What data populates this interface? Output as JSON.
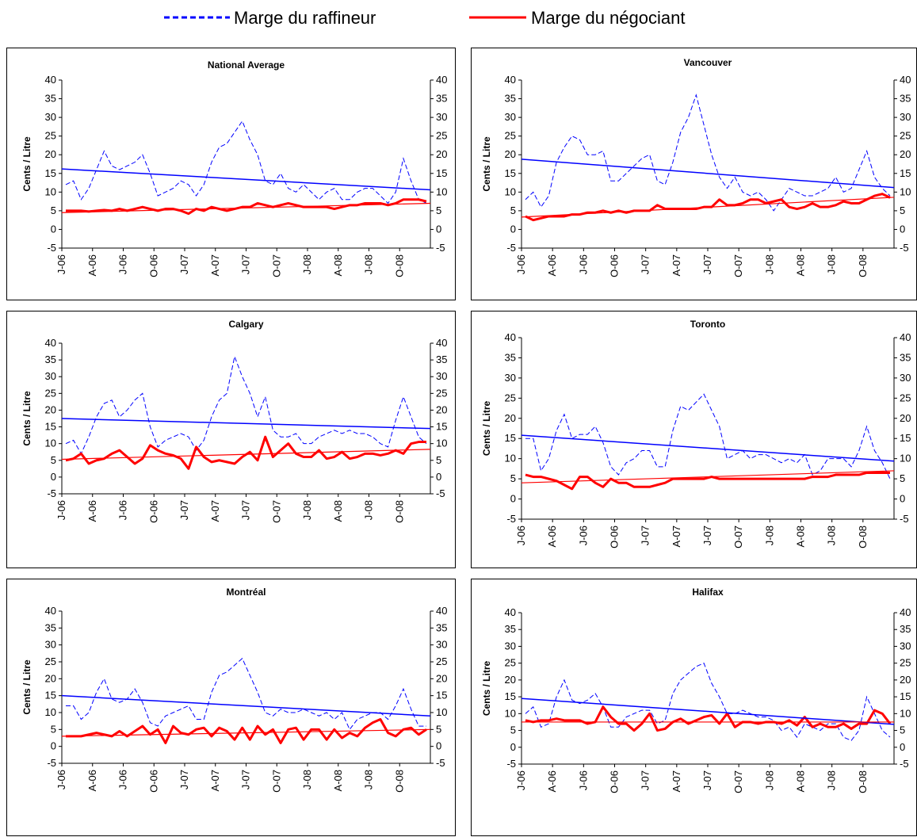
{
  "legend": {
    "refiner": {
      "label": "Marge du raffineur",
      "color": "#0000ff",
      "style": "dashed"
    },
    "retailer": {
      "label": "Marge du négociant",
      "color": "#ff0000",
      "style": "solid"
    }
  },
  "colors": {
    "refiner": "#0000ff",
    "retailer": "#ff0000"
  },
  "chart_data": [
    {
      "type": "line",
      "title": "National Average",
      "ylabel": "Cents / Litre",
      "ylim": [
        -5,
        40
      ],
      "yticks": [
        -5,
        0,
        5,
        10,
        15,
        20,
        25,
        30,
        35,
        40
      ],
      "xticks": [
        "J-06",
        "A-06",
        "J-06",
        "O-06",
        "J-07",
        "A-07",
        "J-07",
        "O-07",
        "J-08",
        "A-08",
        "J-08",
        "O-08"
      ],
      "series": [
        {
          "name": "Marge du raffineur",
          "x": [
            0,
            0.25,
            0.5,
            0.75,
            1,
            1.25,
            1.5,
            1.75,
            2,
            2.25,
            2.5,
            2.75,
            3,
            3.25,
            3.5,
            3.75,
            4,
            4.25,
            4.5,
            4.75,
            5,
            5.25,
            5.5,
            5.75,
            6,
            6.25,
            6.5,
            6.75,
            7,
            7.25,
            7.5,
            7.75,
            8,
            8.25,
            8.5,
            8.75,
            9,
            9.25,
            9.5,
            9.75,
            10,
            10.25,
            10.5,
            10.75,
            11,
            11.25,
            11.5,
            11.75
          ],
          "values": [
            12,
            13,
            8,
            11,
            16,
            21,
            17,
            16,
            17,
            18,
            20,
            15,
            9,
            10,
            11,
            13,
            12,
            9,
            12,
            18,
            22,
            23,
            26,
            29,
            24,
            20,
            13,
            12,
            15,
            11,
            10,
            12,
            10,
            8,
            10,
            11,
            8,
            8,
            10,
            11,
            11,
            9,
            7,
            10,
            19,
            13,
            8,
            7
          ]
        },
        {
          "name": "Marge du négociant",
          "values": [
            5,
            5,
            5,
            4.8,
            5,
            5.2,
            5,
            5.5,
            5,
            5.5,
            6,
            5.5,
            5,
            5.5,
            5.5,
            5,
            4.2,
            5.5,
            5,
            6,
            5.5,
            5,
            5.5,
            6,
            6,
            7,
            6.5,
            6,
            6.5,
            7,
            6.5,
            6,
            6,
            6,
            6,
            5.5,
            6,
            6.5,
            6.5,
            7,
            7,
            7,
            6.5,
            7,
            8,
            8,
            8,
            7.5
          ]
        },
        {
          "name": "Marge du raffineur (tendance)",
          "values": [
            16.2,
            10.6
          ]
        },
        {
          "name": "Marge du négociant (tendance)",
          "values": [
            4.5,
            7.0
          ]
        }
      ]
    },
    {
      "type": "line",
      "title": "Vancouver",
      "ylabel": "Cents / Litre",
      "ylim": [
        -5,
        40
      ],
      "yticks": [
        -5,
        0,
        5,
        10,
        15,
        20,
        25,
        30,
        35,
        40
      ],
      "xticks": [
        "J-06",
        "A-06",
        "J-06",
        "O-06",
        "J-07",
        "A-07",
        "J-07",
        "O-07",
        "J-08",
        "A-08",
        "J-08",
        "O-08"
      ],
      "series": [
        {
          "name": "Marge du raffineur",
          "values": [
            8,
            10,
            6,
            9,
            18,
            22,
            25,
            24,
            20,
            20,
            21,
            13,
            13,
            15,
            17,
            19,
            20,
            13,
            12,
            18,
            26,
            30,
            36,
            28,
            20,
            14,
            11,
            14,
            10,
            9,
            10,
            8,
            5,
            8,
            11,
            10,
            9,
            9,
            10,
            11,
            14,
            10,
            11,
            16,
            21,
            14,
            11,
            9
          ]
        },
        {
          "name": "Marge du négociant",
          "values": [
            3.5,
            2.5,
            3,
            3.5,
            3.5,
            3.5,
            4,
            4,
            4.5,
            4.5,
            5,
            4.5,
            5,
            4.5,
            5,
            5,
            5,
            6.5,
            5.5,
            5.5,
            5.5,
            5.5,
            5.5,
            6,
            6,
            8,
            6.5,
            6.5,
            7,
            8,
            8,
            7,
            7.5,
            8,
            6,
            5.5,
            6,
            7,
            6,
            6,
            6.5,
            7.5,
            7,
            7,
            8,
            9,
            9.5,
            8.5
          ]
        },
        {
          "name": "Marge du raffineur (tendance)",
          "values": [
            18.8,
            11.2
          ]
        },
        {
          "name": "Marge du négociant (tendance)",
          "values": [
            3.3,
            8.6
          ]
        }
      ]
    },
    {
      "type": "line",
      "title": "Calgary",
      "ylabel": "Cents / Litre",
      "ylim": [
        -5,
        40
      ],
      "yticks": [
        -5,
        0,
        5,
        10,
        15,
        20,
        25,
        30,
        35,
        40
      ],
      "xticks": [
        "J-06",
        "A-06",
        "J-06",
        "O-06",
        "J-07",
        "A-07",
        "J-07",
        "O-07",
        "J-08",
        "A-08",
        "J-08",
        "O-08"
      ],
      "series": [
        {
          "name": "Marge du raffineur",
          "values": [
            10,
            11,
            7,
            12,
            18,
            22,
            23,
            18,
            20,
            23,
            25,
            15,
            9,
            11,
            12,
            13,
            12,
            8,
            11,
            18,
            23,
            25,
            36,
            30,
            25,
            18,
            24,
            14,
            12,
            12,
            13,
            10,
            10,
            12,
            13,
            14,
            13,
            14,
            13,
            13,
            12,
            10,
            9,
            17,
            24,
            18,
            12,
            10
          ]
        },
        {
          "name": "Marge du négociant",
          "values": [
            5,
            5.5,
            7,
            4,
            5,
            5.5,
            7,
            8,
            6,
            4,
            5.5,
            9.5,
            8,
            7,
            6.5,
            5.5,
            2.5,
            9,
            6,
            4.5,
            5,
            4.5,
            4,
            6,
            7.5,
            5,
            12,
            6,
            8,
            10,
            7,
            6,
            6,
            8,
            5.5,
            6,
            7.5,
            5.5,
            6,
            7,
            7,
            6.5,
            7,
            8,
            7,
            10,
            10.5,
            10.5
          ]
        },
        {
          "name": "Marge du raffineur (tendance)",
          "values": [
            17.5,
            14.5
          ]
        },
        {
          "name": "Marge du négociant (tendance)",
          "values": [
            5.3,
            8.3
          ]
        }
      ]
    },
    {
      "type": "line",
      "title": "Toronto",
      "ylabel": "Cents / Litre",
      "ylim": [
        -5,
        40
      ],
      "yticks": [
        -5,
        0,
        5,
        10,
        15,
        20,
        25,
        30,
        35,
        40
      ],
      "xticks": [
        "J-06",
        "A-06",
        "J-06",
        "O-06",
        "J-07",
        "A-07",
        "J-07",
        "O-07",
        "J-08",
        "A-08",
        "J-08",
        "O-08"
      ],
      "series": [
        {
          "name": "Marge du raffineur",
          "values": [
            15,
            15,
            7,
            10,
            17,
            21,
            15,
            16,
            16,
            18,
            14,
            8,
            6,
            9,
            10,
            12,
            12,
            8,
            8,
            17,
            23,
            22,
            24,
            26,
            22,
            18,
            10,
            11,
            12,
            10,
            11,
            11,
            10,
            9,
            10,
            9,
            11,
            6,
            7,
            10,
            10,
            10,
            8,
            12,
            18,
            12,
            9,
            5
          ]
        },
        {
          "name": "Marge du négociant",
          "values": [
            6,
            5.5,
            5.5,
            5,
            4.5,
            3.5,
            2.5,
            5.5,
            5.5,
            4,
            3,
            5,
            4,
            4,
            3,
            3,
            3,
            3.5,
            4,
            5,
            5,
            5,
            5,
            5,
            5.5,
            5,
            5,
            5,
            5,
            5,
            5,
            5,
            5,
            5,
            5,
            5,
            5,
            5.5,
            5.5,
            5.5,
            6,
            6,
            6,
            6,
            6.5,
            6.5,
            6.5,
            6.5
          ]
        },
        {
          "name": "Marge du raffineur (tendance)",
          "values": [
            15.8,
            9.4
          ]
        },
        {
          "name": "Marge du négociant (tendance)",
          "values": [
            4.0,
            7.0
          ]
        }
      ]
    },
    {
      "type": "line",
      "title": "Montréal",
      "ylabel": "Cents / Litre",
      "ylim": [
        -5,
        40
      ],
      "yticks": [
        -5,
        0,
        5,
        10,
        15,
        20,
        25,
        30,
        35,
        40
      ],
      "xticks": [
        "J-06",
        "A-06",
        "J-06",
        "O-06",
        "J-07",
        "A-07",
        "J-07",
        "O-07",
        "J-08",
        "A-08",
        "J-08",
        "O-08"
      ],
      "series": [
        {
          "name": "Marge du raffineur",
          "values": [
            12,
            12,
            8,
            10,
            16,
            20,
            14,
            13,
            14,
            17,
            13,
            7,
            6,
            9,
            10,
            11,
            12,
            8,
            8,
            16,
            21,
            22,
            24,
            26,
            21,
            16,
            10,
            9,
            11,
            10,
            10,
            11,
            10,
            9,
            10,
            8,
            10,
            5,
            8,
            9,
            10,
            10,
            8,
            12,
            17,
            11,
            6,
            6
          ]
        },
        {
          "name": "Marge du négociant",
          "values": [
            3,
            3,
            3,
            3.5,
            4,
            3.5,
            3,
            4.5,
            3,
            4.5,
            6,
            3.5,
            5,
            1,
            6,
            4,
            3.5,
            5,
            5.5,
            3,
            5.5,
            4.5,
            2,
            5.5,
            2,
            6,
            3.5,
            5,
            1,
            5,
            5.5,
            2,
            5,
            5,
            2,
            5,
            2.5,
            4,
            3,
            5.5,
            7,
            8,
            4,
            3,
            5,
            5.5,
            3.5,
            5
          ]
        },
        {
          "name": "Marge du raffineur (tendance)",
          "values": [
            15.0,
            9.0
          ]
        },
        {
          "name": "Marge du négociant (tendance)",
          "values": [
            3.0,
            5.0
          ]
        }
      ]
    },
    {
      "type": "line",
      "title": "Halifax",
      "ylabel": "Cents / Litre",
      "ylim": [
        -5,
        40
      ],
      "yticks": [
        -5,
        0,
        5,
        10,
        15,
        20,
        25,
        30,
        35,
        40
      ],
      "xticks": [
        "J-06",
        "A-06",
        "J-06",
        "O-06",
        "J-07",
        "A-07",
        "J-07",
        "O-07",
        "J-08",
        "A-08",
        "J-08",
        "O-08"
      ],
      "series": [
        {
          "name": "Marge du raffineur",
          "values": [
            10,
            12,
            6,
            7,
            15,
            20,
            14,
            13,
            14,
            16,
            12,
            6,
            6,
            9,
            10,
            11,
            11,
            7,
            8,
            16,
            20,
            22,
            24,
            25,
            19,
            15,
            10,
            10,
            11,
            10,
            9,
            9,
            8,
            5,
            6,
            3,
            7,
            6,
            5,
            7,
            7,
            3,
            2,
            5,
            15,
            10,
            5,
            3
          ]
        },
        {
          "name": "Marge du négociant",
          "values": [
            8,
            7.5,
            8,
            8,
            8.5,
            8,
            8,
            8,
            7,
            7.5,
            12,
            9,
            7,
            7,
            5,
            7,
            10,
            5,
            5.5,
            7.5,
            8.5,
            7,
            8,
            9,
            9.5,
            7,
            10,
            6,
            7.5,
            7.5,
            7,
            7.5,
            7.5,
            7,
            8,
            6.5,
            9,
            6,
            7,
            6,
            6,
            7,
            5.5,
            7,
            7,
            11,
            10,
            7
          ]
        },
        {
          "name": "Marge du raffineur (tendance)",
          "values": [
            14.5,
            6.8
          ]
        },
        {
          "name": "Marge du négociant (tendance)",
          "values": [
            7.5,
            7.5
          ]
        }
      ]
    }
  ]
}
